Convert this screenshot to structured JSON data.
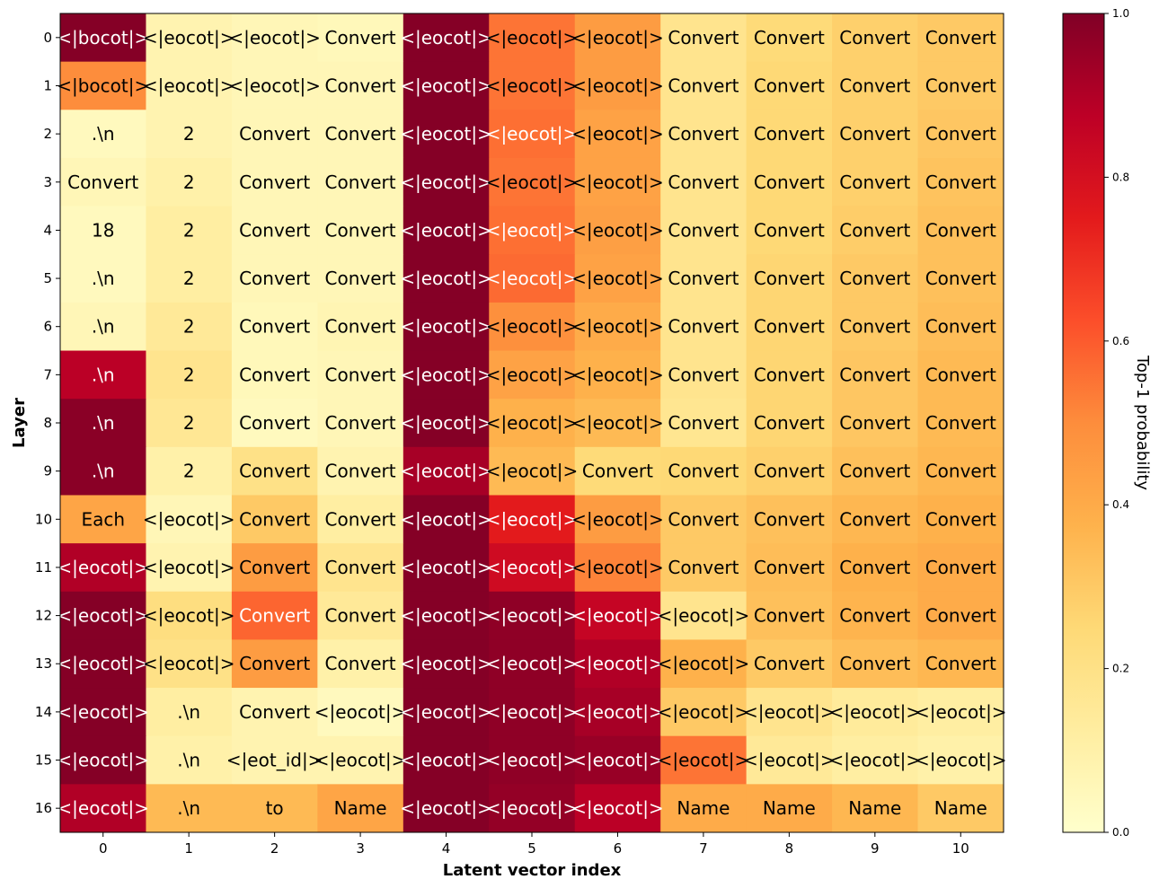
{
  "chart_data": {
    "type": "heatmap",
    "xlabel": "Latent vector index",
    "ylabel": "Layer",
    "colorbar_label": "Top-1 probability",
    "colorbar_ticks": [
      "0.0",
      "0.2",
      "0.4",
      "0.6",
      "0.8",
      "1.0"
    ],
    "value_range": [
      0,
      1
    ],
    "colormap": "YlOrRd",
    "x_ticks": [
      "0",
      "1",
      "2",
      "3",
      "4",
      "5",
      "6",
      "7",
      "8",
      "9",
      "10"
    ],
    "y_ticks": [
      "0",
      "1",
      "2",
      "3",
      "4",
      "5",
      "6",
      "7",
      "8",
      "9",
      "10",
      "11",
      "12",
      "13",
      "14",
      "15",
      "16"
    ],
    "tokens": [
      [
        "<|bocot|>",
        "<|eocot|>",
        "<|eocot|>",
        "Convert",
        "<|eocot|>",
        "<|eocot|>",
        "<|eocot|>",
        "Convert",
        "Convert",
        "Convert",
        "Convert"
      ],
      [
        "<|bocot|>",
        "<|eocot|>",
        "<|eocot|>",
        "Convert",
        "<|eocot|>",
        "<|eocot|>",
        "<|eocot|>",
        "Convert",
        "Convert",
        "Convert",
        "Convert"
      ],
      [
        ".\\n",
        "2",
        "Convert",
        "Convert",
        "<|eocot|>",
        "<|eocot|>",
        "<|eocot|>",
        "Convert",
        "Convert",
        "Convert",
        "Convert"
      ],
      [
        "Convert",
        "2",
        "Convert",
        "Convert",
        "<|eocot|>",
        "<|eocot|>",
        "<|eocot|>",
        "Convert",
        "Convert",
        "Convert",
        "Convert"
      ],
      [
        "18",
        "2",
        "Convert",
        "Convert",
        "<|eocot|>",
        "<|eocot|>",
        "<|eocot|>",
        "Convert",
        "Convert",
        "Convert",
        "Convert"
      ],
      [
        ".\\n",
        "2",
        "Convert",
        "Convert",
        "<|eocot|>",
        "<|eocot|>",
        "<|eocot|>",
        "Convert",
        "Convert",
        "Convert",
        "Convert"
      ],
      [
        ".\\n",
        "2",
        "Convert",
        "Convert",
        "<|eocot|>",
        "<|eocot|>",
        "<|eocot|>",
        "Convert",
        "Convert",
        "Convert",
        "Convert"
      ],
      [
        ".\\n",
        "2",
        "Convert",
        "Convert",
        "<|eocot|>",
        "<|eocot|>",
        "<|eocot|>",
        "Convert",
        "Convert",
        "Convert",
        "Convert"
      ],
      [
        ".\\n",
        "2",
        "Convert",
        "Convert",
        "<|eocot|>",
        "<|eocot|>",
        "<|eocot|>",
        "Convert",
        "Convert",
        "Convert",
        "Convert"
      ],
      [
        ".\\n",
        "2",
        "Convert",
        "Convert",
        "<|eocot|>",
        "<|eocot|>",
        "Convert",
        "Convert",
        "Convert",
        "Convert",
        "Convert"
      ],
      [
        "Each",
        "<|eocot|>",
        "Convert",
        "Convert",
        "<|eocot|>",
        "<|eocot|>",
        "<|eocot|>",
        "Convert",
        "Convert",
        "Convert",
        "Convert"
      ],
      [
        "<|eocot|>",
        "<|eocot|>",
        "Convert",
        "Convert",
        "<|eocot|>",
        "<|eocot|>",
        "<|eocot|>",
        "Convert",
        "Convert",
        "Convert",
        "Convert"
      ],
      [
        "<|eocot|>",
        "<|eocot|>",
        "Convert",
        "Convert",
        "<|eocot|>",
        "<|eocot|>",
        "<|eocot|>",
        "<|eocot|>",
        "Convert",
        "Convert",
        "Convert"
      ],
      [
        "<|eocot|>",
        "<|eocot|>",
        "Convert",
        "Convert",
        "<|eocot|>",
        "<|eocot|>",
        "<|eocot|>",
        "<|eocot|>",
        "Convert",
        "Convert",
        "Convert"
      ],
      [
        "<|eocot|>",
        ".\\n",
        "Convert",
        "<|eocot|>",
        "<|eocot|>",
        "<|eocot|>",
        "<|eocot|>",
        "<|eocot|>",
        "<|eocot|>",
        "<|eocot|>",
        "<|eocot|>"
      ],
      [
        "<|eocot|>",
        ".\\n",
        "<|eot_id|>",
        "<|eocot|>",
        "<|eocot|>",
        "<|eocot|>",
        "<|eocot|>",
        "<|eocot|>",
        "<|eocot|>",
        "<|eocot|>",
        "<|eocot|>"
      ],
      [
        "<|eocot|>",
        ".\\n",
        "to",
        "Name",
        "<|eocot|>",
        "<|eocot|>",
        "<|eocot|>",
        "Name",
        "Name",
        "Name",
        "Name"
      ]
    ],
    "probabilities": [
      [
        0.99,
        0.08,
        0.06,
        0.05,
        0.99,
        0.55,
        0.45,
        0.18,
        0.24,
        0.28,
        0.3
      ],
      [
        0.5,
        0.08,
        0.06,
        0.06,
        0.99,
        0.55,
        0.45,
        0.18,
        0.25,
        0.28,
        0.3
      ],
      [
        0.04,
        0.08,
        0.06,
        0.06,
        0.99,
        0.56,
        0.43,
        0.18,
        0.25,
        0.28,
        0.31
      ],
      [
        0.06,
        0.1,
        0.06,
        0.06,
        0.99,
        0.55,
        0.43,
        0.18,
        0.25,
        0.28,
        0.32
      ],
      [
        0.04,
        0.12,
        0.06,
        0.06,
        0.99,
        0.56,
        0.44,
        0.18,
        0.25,
        0.29,
        0.33
      ],
      [
        0.04,
        0.12,
        0.06,
        0.06,
        0.99,
        0.57,
        0.43,
        0.18,
        0.26,
        0.3,
        0.33
      ],
      [
        0.06,
        0.15,
        0.05,
        0.07,
        0.99,
        0.49,
        0.4,
        0.18,
        0.26,
        0.3,
        0.34
      ],
      [
        0.88,
        0.18,
        0.05,
        0.06,
        0.99,
        0.43,
        0.38,
        0.18,
        0.26,
        0.31,
        0.35
      ],
      [
        0.98,
        0.16,
        0.04,
        0.06,
        0.99,
        0.38,
        0.35,
        0.17,
        0.26,
        0.31,
        0.35
      ],
      [
        0.98,
        0.1,
        0.2,
        0.08,
        0.92,
        0.35,
        0.24,
        0.25,
        0.28,
        0.33,
        0.36
      ],
      [
        0.42,
        0.06,
        0.3,
        0.12,
        0.99,
        0.75,
        0.45,
        0.3,
        0.33,
        0.36,
        0.38
      ],
      [
        0.9,
        0.08,
        0.45,
        0.18,
        0.99,
        0.82,
        0.52,
        0.3,
        0.34,
        0.38,
        0.4
      ],
      [
        0.99,
        0.22,
        0.58,
        0.15,
        0.99,
        0.97,
        0.85,
        0.18,
        0.33,
        0.37,
        0.4
      ],
      [
        0.99,
        0.2,
        0.45,
        0.1,
        0.99,
        0.97,
        0.9,
        0.38,
        0.3,
        0.34,
        0.36
      ],
      [
        0.99,
        0.12,
        0.08,
        0.04,
        0.99,
        0.97,
        0.92,
        0.3,
        0.18,
        0.14,
        0.12
      ],
      [
        0.99,
        0.1,
        0.08,
        0.08,
        0.99,
        0.97,
        0.95,
        0.55,
        0.15,
        0.12,
        0.1
      ],
      [
        0.9,
        0.35,
        0.35,
        0.42,
        0.99,
        0.96,
        0.88,
        0.4,
        0.4,
        0.36,
        0.3
      ]
    ]
  }
}
